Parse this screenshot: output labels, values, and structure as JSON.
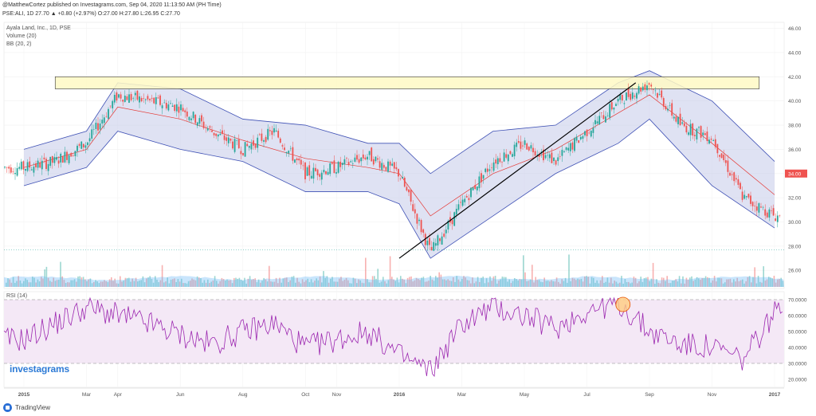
{
  "header": {
    "publisher_line": "@MatthewCortez published on Investagrams.com, Sep 04, 2020 11:13:50 AM (PH Time)",
    "ohlc_line": "PSE:ALI, 1D  27.70  ▲ +0.80 (+2.97%)  O:27.00  H:27.80  L:26.95  C:27.70"
  },
  "legend": {
    "symbol": "Ayala Land, Inc., 1D, PSE",
    "volume": "Volume (20)",
    "bb": "BB (20, 2)",
    "rsi": "RSI (14)"
  },
  "brand": {
    "watermark": "investagrams",
    "footer": "TradingView"
  },
  "colors": {
    "up": "#26a69a",
    "down": "#ef5350",
    "bb_band": "#3f51b5",
    "bb_fill": "#c5cae9",
    "basis": "#e53935",
    "resistance_zone": "#fff9c4",
    "trendline": "#000000",
    "rsi_line": "#9c27b0",
    "rsi_fill": "#f3e5f5",
    "price_label_bg": "#ef5350"
  },
  "chart_data": [
    {
      "type": "line",
      "title": "Ayala Land, Inc., 1D, PSE",
      "x_ticks": [
        "2015",
        "Mar",
        "Apr",
        "Jun",
        "Aug",
        "Oct",
        "Nov",
        "2016",
        "Mar",
        "May",
        "Jul",
        "Sep",
        "Nov",
        "2017"
      ],
      "y_ticks": [
        26,
        28,
        30,
        32,
        34,
        36,
        38,
        40,
        42,
        44,
        46
      ],
      "y_tick_labels": [
        "26.00",
        "28.00",
        "30.00",
        "32.00",
        "34.00",
        "36.00",
        "38.00",
        "40.00",
        "42.00",
        "44.00",
        "46.00"
      ],
      "ylim": [
        24.5,
        46.5
      ],
      "last_price_label": "34.00",
      "series": [
        {
          "x": [
            "2015-01",
            "2015-02",
            "2015-03",
            "2015-04",
            "2015-05",
            "2015-06",
            "2015-07",
            "2015-08",
            "2015-09",
            "2015-10",
            "2015-11",
            "2015-12",
            "2016-01",
            "2016-02",
            "2016-03",
            "2016-04",
            "2016-05",
            "2016-06",
            "2016-07",
            "2016-08",
            "2016-09",
            "2016-10",
            "2016-11",
            "2016-12",
            "2017-01"
          ],
          "y": [
            34.5,
            35.0,
            36.5,
            40.5,
            40.0,
            39.5,
            37.5,
            36.0,
            37.5,
            34.0,
            34.5,
            35.5,
            34.0,
            27.5,
            31.5,
            35.0,
            36.5,
            35.0,
            37.5,
            40.0,
            41.5,
            38.0,
            37.0,
            32.0,
            30.5
          ]
        },
        {
          "name": "BB (20, 2)",
          "x": [
            "2015-01",
            "2015-03",
            "2015-04",
            "2015-06",
            "2015-08",
            "2015-10",
            "2015-12",
            "2016-01",
            "2016-02",
            "2016-04",
            "2016-06",
            "2016-08",
            "2016-09",
            "2016-11",
            "2017-01"
          ],
          "upper": [
            36.0,
            37.5,
            41.5,
            41.0,
            38.5,
            38.0,
            36.5,
            36.5,
            34.0,
            37.5,
            38.0,
            41.5,
            42.5,
            40.0,
            35.0
          ],
          "lower": [
            33.0,
            34.5,
            37.5,
            36.0,
            35.0,
            32.5,
            32.5,
            31.5,
            27.0,
            30.5,
            34.0,
            36.5,
            38.5,
            33.0,
            29.5
          ]
        }
      ],
      "annotations": {
        "resistance_zone": {
          "low": 41.0,
          "high": 42.0,
          "start": "2015-02",
          "end": "2016-12"
        },
        "trendline": {
          "start": {
            "x": "2016-01",
            "y": 27.0
          },
          "end": {
            "x": "2016-08",
            "y": 41.5
          }
        }
      }
    },
    {
      "type": "bar",
      "title": "Volume (20)"
    },
    {
      "type": "line",
      "title": "RSI (14)",
      "y_ticks": [
        20,
        30,
        40,
        50,
        60,
        70
      ],
      "y_tick_labels": [
        "20.0000",
        "30.0000",
        "40.0000",
        "50.0000",
        "60.0000",
        "70.0000"
      ],
      "ylim": [
        15,
        75
      ],
      "levels": [
        30,
        70
      ],
      "x": [
        "2015-01",
        "2015-02",
        "2015-03",
        "2015-04",
        "2015-05",
        "2015-06",
        "2015-07",
        "2015-08",
        "2015-09",
        "2015-10",
        "2015-11",
        "2015-12",
        "2016-01",
        "2016-02",
        "2016-03",
        "2016-04",
        "2016-05",
        "2016-06",
        "2016-07",
        "2016-08",
        "2016-09",
        "2016-10",
        "2016-11",
        "2016-12",
        "2017-01"
      ],
      "values": [
        45,
        55,
        65,
        60,
        55,
        48,
        42,
        50,
        55,
        40,
        45,
        50,
        35,
        25,
        55,
        65,
        60,
        52,
        63,
        68,
        50,
        42,
        40,
        32,
        62
      ]
    }
  ]
}
